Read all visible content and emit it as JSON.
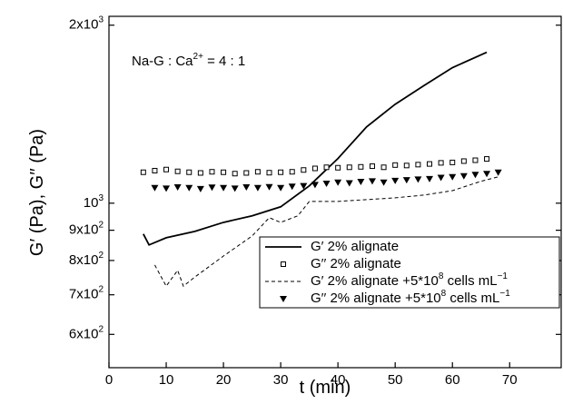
{
  "chart_data": {
    "type": "line",
    "annotation": "Na-G : Ca^2+ = 4 : 1",
    "x_label": "t (min)",
    "y_label": "G′ (Pa), G′′ (Pa)",
    "xlim": [
      0,
      79
    ],
    "xticks": [
      0,
      10,
      20,
      30,
      40,
      50,
      60,
      70
    ],
    "ylim": [
      527,
      2070
    ],
    "log_y": true,
    "yticks": [
      {
        "value": 600,
        "label": "6x10^2"
      },
      {
        "value": 700,
        "label": "7x10^2"
      },
      {
        "value": 800,
        "label": "8x10^2"
      },
      {
        "value": 900,
        "label": "9x10^2"
      },
      {
        "value": 1000,
        "label": "10^3"
      },
      {
        "value": 2000,
        "label": "2x10^3"
      }
    ],
    "series": [
      {
        "name": "G′ 2% alignate",
        "style": "solid",
        "color": "#000000",
        "x": [
          6,
          7,
          10,
          15,
          20,
          25,
          30,
          35,
          40,
          45,
          50,
          55,
          60,
          66
        ],
        "values": [
          887,
          850,
          874,
          896,
          928,
          952,
          986,
          1070,
          1190,
          1346,
          1470,
          1580,
          1695,
          1800
        ]
      },
      {
        "name": "G′′ 2% alignate",
        "style": "square",
        "color": "#000000",
        "x": [
          6,
          8,
          10,
          12,
          14,
          16,
          18,
          20,
          22,
          24,
          26,
          28,
          30,
          32,
          34,
          36,
          38,
          40,
          42,
          44,
          46,
          48,
          50,
          52,
          54,
          56,
          58,
          60,
          62,
          64,
          66
        ],
        "values": [
          1128,
          1135,
          1140,
          1132,
          1128,
          1125,
          1130,
          1128,
          1122,
          1125,
          1130,
          1126,
          1128,
          1130,
          1138,
          1145,
          1150,
          1148,
          1150,
          1152,
          1155,
          1150,
          1160,
          1158,
          1162,
          1165,
          1170,
          1172,
          1178,
          1182,
          1188
        ]
      },
      {
        "name": "G′ 2% alignate +5*10^8 cells mL^−1",
        "style": "dashed",
        "color": "#000000",
        "x": [
          8,
          10,
          12,
          13,
          15,
          20,
          25,
          28,
          30,
          33,
          35,
          40,
          50,
          55,
          60,
          65,
          68
        ],
        "values": [
          786,
          724,
          770,
          724,
          750,
          814,
          880,
          945,
          928,
          952,
          1007,
          1007,
          1021,
          1032,
          1050,
          1089,
          1108
        ]
      },
      {
        "name": "G′′ 2% alignate +5*10^8 cells mL^−1",
        "style": "triangle",
        "color": "#000000",
        "x": [
          8,
          10,
          12,
          14,
          16,
          18,
          20,
          22,
          24,
          26,
          28,
          30,
          32,
          34,
          36,
          38,
          40,
          42,
          44,
          46,
          48,
          50,
          52,
          54,
          56,
          58,
          60,
          62,
          64,
          66,
          68
        ],
        "values": [
          1062,
          1060,
          1065,
          1062,
          1058,
          1064,
          1062,
          1060,
          1065,
          1062,
          1066,
          1062,
          1068,
          1070,
          1075,
          1080,
          1085,
          1082,
          1088,
          1090,
          1085,
          1092,
          1095,
          1098,
          1100,
          1105,
          1108,
          1112,
          1118,
          1122,
          1128
        ]
      }
    ]
  }
}
